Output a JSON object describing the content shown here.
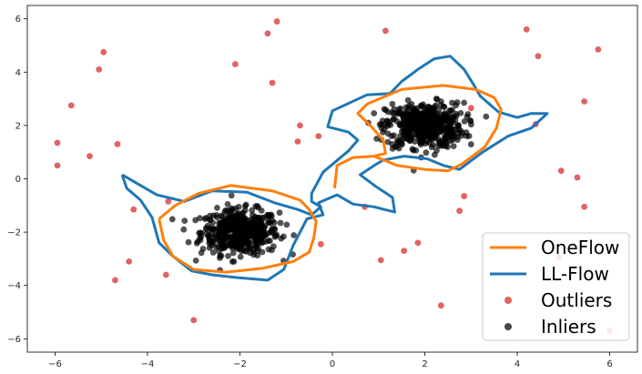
{
  "chart_data": {
    "type": "scatter",
    "title": "",
    "xlabel": "",
    "ylabel": "",
    "xlim": [
      -6.6,
      6.6
    ],
    "ylim": [
      -6.5,
      6.5
    ],
    "x_ticks": [
      -6,
      -4,
      -2,
      0,
      2,
      4,
      6
    ],
    "y_ticks": [
      6,
      4,
      2,
      0,
      -2,
      -4,
      -6
    ],
    "grid": false,
    "legend_position": "lower-right",
    "series": [
      {
        "name": "OneFlow",
        "kind": "line",
        "color": "#ff7f0e",
        "points": [
          [
            -3.75,
            -1.5
          ],
          [
            -3.4,
            -1.0
          ],
          [
            -2.9,
            -0.55
          ],
          [
            -2.2,
            -0.25
          ],
          [
            -1.3,
            -0.45
          ],
          [
            -0.7,
            -0.8
          ],
          [
            -0.5,
            -1.15
          ],
          [
            -0.35,
            -1.6
          ],
          [
            -0.4,
            -2.2
          ],
          [
            -0.5,
            -2.75
          ],
          [
            -0.85,
            -3.1
          ],
          [
            -1.5,
            -3.35
          ],
          [
            -2.3,
            -3.5
          ],
          [
            -3.0,
            -3.4
          ],
          [
            -3.45,
            -2.9
          ],
          [
            -3.65,
            -2.3
          ],
          [
            -3.75,
            -1.5
          ]
        ],
        "branch": [
          [
            0.05,
            -0.35
          ],
          [
            0.1,
            0.5
          ],
          [
            0.45,
            0.8
          ],
          [
            0.9,
            0.85
          ],
          [
            1.15,
            0.95
          ],
          [
            1.1,
            1.45
          ],
          [
            0.85,
            1.95
          ],
          [
            0.55,
            2.45
          ],
          [
            0.75,
            2.8
          ],
          [
            1.5,
            3.35
          ],
          [
            2.4,
            3.5
          ],
          [
            3.1,
            3.35
          ],
          [
            3.5,
            3.05
          ],
          [
            3.65,
            2.6
          ],
          [
            3.55,
            1.9
          ],
          [
            3.3,
            1.2
          ],
          [
            2.8,
            0.55
          ],
          [
            2.5,
            0.3
          ],
          [
            2.0,
            0.35
          ],
          [
            1.4,
            0.5
          ],
          [
            0.9,
            0.85
          ]
        ]
      },
      {
        "name": "LL-Flow",
        "kind": "line",
        "color": "#1f77b4",
        "points": [
          [
            -4.55,
            0.15
          ],
          [
            -3.8,
            -0.6
          ],
          [
            -3.2,
            -0.85
          ],
          [
            -2.6,
            -0.45
          ],
          [
            -1.85,
            -0.5
          ],
          [
            -1.25,
            -0.9
          ],
          [
            -0.75,
            -1.15
          ],
          [
            -0.45,
            -1.35
          ],
          [
            -0.25,
            -1.05
          ],
          [
            -0.45,
            -0.85
          ],
          [
            -0.45,
            -0.55
          ],
          [
            -0.2,
            0.25
          ],
          [
            0.35,
            1.05
          ],
          [
            0.55,
            1.45
          ],
          [
            0.35,
            1.75
          ],
          [
            -0.1,
            1.95
          ],
          [
            0.0,
            2.55
          ],
          [
            0.75,
            3.15
          ],
          [
            1.25,
            3.2
          ],
          [
            1.5,
            3.65
          ],
          [
            1.85,
            4.1
          ],
          [
            2.2,
            4.5
          ],
          [
            2.55,
            4.6
          ],
          [
            2.85,
            4.1
          ],
          [
            3.05,
            3.55
          ],
          [
            3.2,
            3.1
          ],
          [
            3.6,
            2.5
          ],
          [
            4.0,
            2.3
          ],
          [
            4.3,
            2.45
          ],
          [
            4.65,
            2.45
          ],
          [
            4.3,
            1.9
          ],
          [
            3.8,
            1.6
          ],
          [
            3.25,
            1.0
          ],
          [
            2.75,
            0.35
          ],
          [
            2.4,
            0.5
          ],
          [
            2.05,
            0.75
          ],
          [
            1.55,
            0.85
          ],
          [
            1.1,
            0.7
          ],
          [
            0.95,
            0.55
          ],
          [
            0.6,
            0.15
          ],
          [
            0.95,
            -0.3
          ],
          [
            1.3,
            -0.7
          ],
          [
            1.35,
            -1.25
          ],
          [
            0.9,
            -1.05
          ],
          [
            0.45,
            -0.95
          ],
          [
            0.1,
            -0.6
          ],
          [
            -0.3,
            -0.9
          ],
          [
            -0.2,
            -1.35
          ],
          [
            -0.55,
            -1.5
          ],
          [
            -0.85,
            -2.5
          ],
          [
            -1.05,
            -3.4
          ],
          [
            -1.4,
            -3.8
          ],
          [
            -2.1,
            -3.7
          ],
          [
            -2.6,
            -3.6
          ],
          [
            -3.05,
            -3.45
          ],
          [
            -3.45,
            -2.9
          ],
          [
            -3.75,
            -2.4
          ],
          [
            -3.9,
            -1.45
          ],
          [
            -4.15,
            -0.8
          ],
          [
            -4.45,
            -0.35
          ],
          [
            -4.55,
            0.15
          ]
        ]
      },
      {
        "name": "Outliers",
        "kind": "scatter",
        "color": "#d62728",
        "points": [
          [
            -5.95,
            1.35
          ],
          [
            -5.95,
            0.5
          ],
          [
            -5.65,
            2.75
          ],
          [
            -5.25,
            0.85
          ],
          [
            -5.05,
            4.1
          ],
          [
            -4.95,
            4.75
          ],
          [
            -4.7,
            -3.8
          ],
          [
            -4.65,
            1.3
          ],
          [
            -4.4,
            -3.1
          ],
          [
            -4.3,
            -1.15
          ],
          [
            -3.6,
            -3.6
          ],
          [
            -3.0,
            -5.3
          ],
          [
            -2.1,
            4.3
          ],
          [
            -1.4,
            5.45
          ],
          [
            -1.3,
            3.6
          ],
          [
            -1.2,
            5.9
          ],
          [
            -0.7,
            2.0
          ],
          [
            -0.75,
            1.4
          ],
          [
            -0.3,
            1.6
          ],
          [
            -0.25,
            -2.45
          ],
          [
            0.7,
            -1.05
          ],
          [
            1.05,
            -3.05
          ],
          [
            1.15,
            5.55
          ],
          [
            1.55,
            -2.7
          ],
          [
            1.85,
            -2.4
          ],
          [
            2.35,
            -4.75
          ],
          [
            2.75,
            -1.2
          ],
          [
            2.85,
            -0.65
          ],
          [
            4.2,
            5.6
          ],
          [
            4.45,
            4.6
          ],
          [
            4.4,
            2.05
          ],
          [
            4.9,
            -2.95
          ],
          [
            4.95,
            0.3
          ],
          [
            5.3,
            0.05
          ],
          [
            5.45,
            2.9
          ],
          [
            5.45,
            -1.05
          ],
          [
            5.75,
            4.85
          ],
          [
            6.0,
            -5.7
          ],
          [
            -3.55,
            -0.85
          ],
          [
            3.0,
            2.65
          ]
        ]
      },
      {
        "name": "Inliers",
        "kind": "scatter",
        "color": "#000000",
        "clusters": [
          {
            "center": [
              -2.0,
              -2.0
            ],
            "count": 480,
            "spread": 0.42
          },
          {
            "center": [
              2.0,
              2.0
            ],
            "count": 480,
            "spread": 0.42
          }
        ]
      }
    ]
  }
}
